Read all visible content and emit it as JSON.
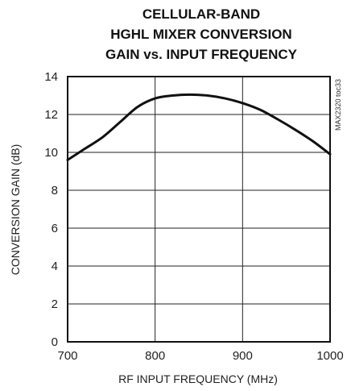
{
  "chart_data": {
    "type": "line",
    "title": [
      "CELLULAR-BAND",
      "HGHL MIXER CONVERSION",
      "GAIN vs. INPUT FREQUENCY"
    ],
    "xlabel": "RF INPUT FREQUENCY (MHz)",
    "ylabel": "CONVERSION GAIN (dB)",
    "side_note": "MAX2320 toc33",
    "xlim": [
      700,
      1000
    ],
    "ylim": [
      0,
      14
    ],
    "xticks": [
      700,
      800,
      900,
      1000
    ],
    "yticks": [
      0,
      2,
      4,
      6,
      8,
      10,
      12,
      14
    ],
    "grid": true,
    "series": [
      {
        "x": [
          700,
          720,
          740,
          760,
          780,
          800,
          820,
          840,
          860,
          880,
          900,
          920,
          940,
          960,
          980,
          1000
        ],
        "y": [
          9.6,
          10.2,
          10.8,
          11.6,
          12.4,
          12.85,
          13.0,
          13.05,
          13.0,
          12.85,
          12.6,
          12.25,
          11.75,
          11.2,
          10.6,
          9.9
        ]
      }
    ],
    "line_color": "#111111"
  }
}
